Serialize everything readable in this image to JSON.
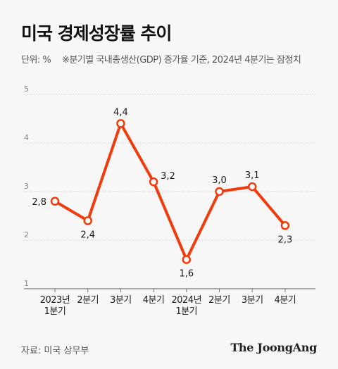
{
  "title": "미국 경제성장률 추이",
  "unit_label": "단위: %",
  "note": "※분기별 국내총생산(GDP) 증가율 기준, 2024년 4분기는 잠정치",
  "source": "자료: 미국 상무부",
  "logo": "The JoongAng",
  "colors": {
    "line": "#f03c0c",
    "grid": "#cccccc",
    "axis": "#777777",
    "text": "#1a1a1a"
  },
  "chart_data": {
    "type": "line",
    "categories": [
      [
        "2023년",
        "1분기"
      ],
      [
        "2분기"
      ],
      [
        "3분기"
      ],
      [
        "4분기"
      ],
      [
        "2024년",
        "1분기"
      ],
      [
        "2분기"
      ],
      [
        "3분기"
      ],
      [
        "4분기"
      ]
    ],
    "values": [
      2.8,
      2.4,
      4.4,
      3.2,
      1.6,
      3.0,
      3.1,
      2.3
    ],
    "value_labels": [
      "2,8",
      "2,4",
      "4,4",
      "3,2",
      "1,6",
      "3,0",
      "3,1",
      "2,3"
    ],
    "label_position": [
      "left",
      "below",
      "above",
      "right",
      "below",
      "above",
      "above",
      "below"
    ],
    "yticks": [
      1,
      2,
      3,
      4,
      5
    ],
    "ylim": [
      1,
      5
    ],
    "grid": true
  }
}
